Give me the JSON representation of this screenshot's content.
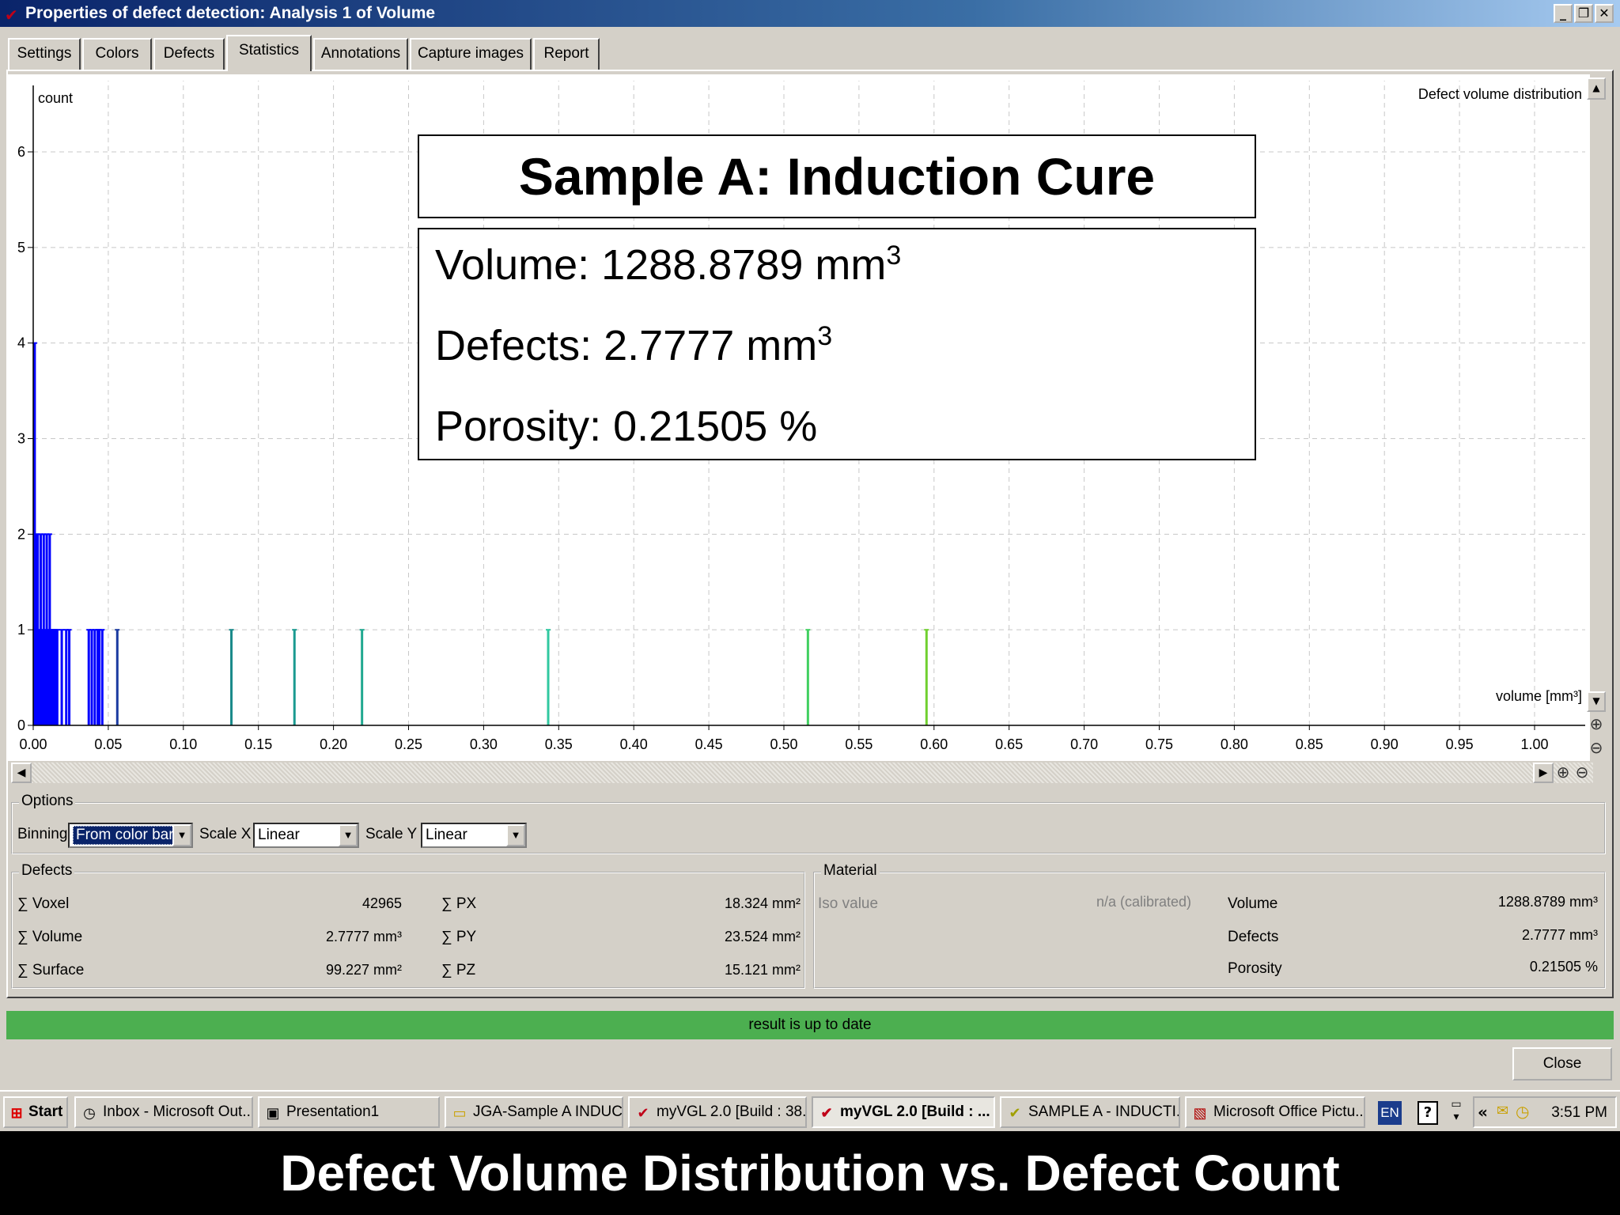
{
  "window": {
    "title": "Properties of defect detection: Analysis 1 of Volume",
    "controls": [
      "_",
      "²",
      "X"
    ]
  },
  "tabs": [
    {
      "label": "Settings"
    },
    {
      "label": "Colors"
    },
    {
      "label": "Defects"
    },
    {
      "label": "Statistics",
      "active": true
    },
    {
      "label": "Annotations"
    },
    {
      "label": "Capture images"
    },
    {
      "label": "Report"
    }
  ],
  "overlay": {
    "title": "Sample A: Induction Cure",
    "volume_label": "Volume: 1288.8789 mm",
    "defects_label": "Defects: 2.7777 mm",
    "porosity_label": "Porosity: 0.21505 %",
    "superscript": "3"
  },
  "chart_data": {
    "type": "bar",
    "title": "Defect volume distribution",
    "ylabel": "count",
    "xlabel": "volume [mm³]",
    "xlim": [
      0,
      1.0
    ],
    "ylim": [
      0,
      6
    ],
    "grid": true,
    "x_ticks": [
      "0.00",
      "0.05",
      "0.10",
      "0.15",
      "0.20",
      "0.25",
      "0.30",
      "0.35",
      "0.40",
      "0.45",
      "0.50",
      "0.55",
      "0.60",
      "0.65",
      "0.70",
      "0.75",
      "0.80",
      "0.85",
      "0.90",
      "0.95",
      "1.00"
    ],
    "y_ticks": [
      "0",
      "1",
      "2",
      "3",
      "4",
      "5",
      "6"
    ],
    "bars": [
      {
        "x": 0.001,
        "count": 4,
        "color": "#0000ff"
      },
      {
        "x": 0.002,
        "count": 2,
        "color": "#0000ff"
      },
      {
        "x": 0.003,
        "count": 2,
        "color": "#0000ff"
      },
      {
        "x": 0.004,
        "count": 1,
        "color": "#0000ff"
      },
      {
        "x": 0.005,
        "count": 2,
        "color": "#0000ff"
      },
      {
        "x": 0.006,
        "count": 1,
        "color": "#0000ff"
      },
      {
        "x": 0.007,
        "count": 2,
        "color": "#0000ff"
      },
      {
        "x": 0.008,
        "count": 1,
        "color": "#0000ff"
      },
      {
        "x": 0.009,
        "count": 2,
        "color": "#0000ff"
      },
      {
        "x": 0.01,
        "count": 1,
        "color": "#0000ff"
      },
      {
        "x": 0.011,
        "count": 2,
        "color": "#0000ff"
      },
      {
        "x": 0.012,
        "count": 1,
        "color": "#0000ff"
      },
      {
        "x": 0.013,
        "count": 1,
        "color": "#0000ff"
      },
      {
        "x": 0.014,
        "count": 1,
        "color": "#0000ff"
      },
      {
        "x": 0.015,
        "count": 1,
        "color": "#0000ff"
      },
      {
        "x": 0.016,
        "count": 1,
        "color": "#0000ff"
      },
      {
        "x": 0.019,
        "count": 1,
        "color": "#0000ff"
      },
      {
        "x": 0.022,
        "count": 1,
        "color": "#0000ff"
      },
      {
        "x": 0.024,
        "count": 1,
        "color": "#0000ff"
      },
      {
        "x": 0.037,
        "count": 1,
        "color": "#0000ff"
      },
      {
        "x": 0.039,
        "count": 1,
        "color": "#0000ff"
      },
      {
        "x": 0.041,
        "count": 1,
        "color": "#0000ff"
      },
      {
        "x": 0.043,
        "count": 1,
        "color": "#0000ff"
      },
      {
        "x": 0.044,
        "count": 1,
        "color": "#0000ff"
      },
      {
        "x": 0.046,
        "count": 1,
        "color": "#0000ff"
      },
      {
        "x": 0.056,
        "count": 1,
        "color": "#1a3aa0"
      },
      {
        "x": 0.132,
        "count": 1,
        "color": "#1a8a8a"
      },
      {
        "x": 0.174,
        "count": 1,
        "color": "#1a9a90"
      },
      {
        "x": 0.219,
        "count": 1,
        "color": "#20a890"
      },
      {
        "x": 0.343,
        "count": 1,
        "color": "#30c8a0"
      },
      {
        "x": 0.516,
        "count": 1,
        "color": "#40d060"
      },
      {
        "x": 0.595,
        "count": 1,
        "color": "#70d030"
      }
    ]
  },
  "options": {
    "group_label": "Options",
    "binning_label": "Binning",
    "binning_value": "From color bar",
    "scale_x_label": "Scale X",
    "scale_x_value": "Linear",
    "scale_y_label": "Scale Y",
    "scale_y_value": "Linear"
  },
  "defects": {
    "group_label": "Defects",
    "rows": [
      {
        "label": "∑ Voxel",
        "value": "42965",
        "label2": "∑ PX",
        "value2": "18.324 mm²"
      },
      {
        "label": "∑ Volume",
        "value": "2.7777 mm³",
        "label2": "∑ PY",
        "value2": "23.524 mm²"
      },
      {
        "label": "∑ Surface",
        "value": "99.227 mm²",
        "label2": "∑ PZ",
        "value2": "15.121 mm²"
      }
    ]
  },
  "material": {
    "group_label": "Material",
    "iso_label": "Iso value",
    "iso_value": "n/a (calibrated)",
    "rows": [
      {
        "label": "Volume",
        "value": "1288.8789 mm³"
      },
      {
        "label": "Defects",
        "value": "2.7777 mm³"
      },
      {
        "label": "Porosity",
        "value": "0.21505 %"
      }
    ]
  },
  "status": {
    "text": "result is up to date",
    "color": "#4caf50"
  },
  "close_label": "Close",
  "taskbar": {
    "start": "Start",
    "items": [
      {
        "label": "Inbox - Microsoft Out...",
        "icon": "clock-icon"
      },
      {
        "label": "Presentation1",
        "icon": "powerpoint-icon"
      },
      {
        "label": "JGA-Sample A INDUC...",
        "icon": "folder-icon"
      },
      {
        "label": "myVGL 2.0 [Build : 38...",
        "icon": "vgl-icon"
      },
      {
        "label": "myVGL 2.0 [Build : ...",
        "icon": "vgl-icon",
        "active": true
      },
      {
        "label": "SAMPLE A - INDUCTI...",
        "icon": "vgl-icon"
      },
      {
        "label": "Microsoft Office Pictu...",
        "icon": "picture-manager-icon"
      }
    ],
    "lang": "EN",
    "clock": "3:51 PM"
  },
  "caption": "Defect Volume Distribution vs. Defect Count"
}
